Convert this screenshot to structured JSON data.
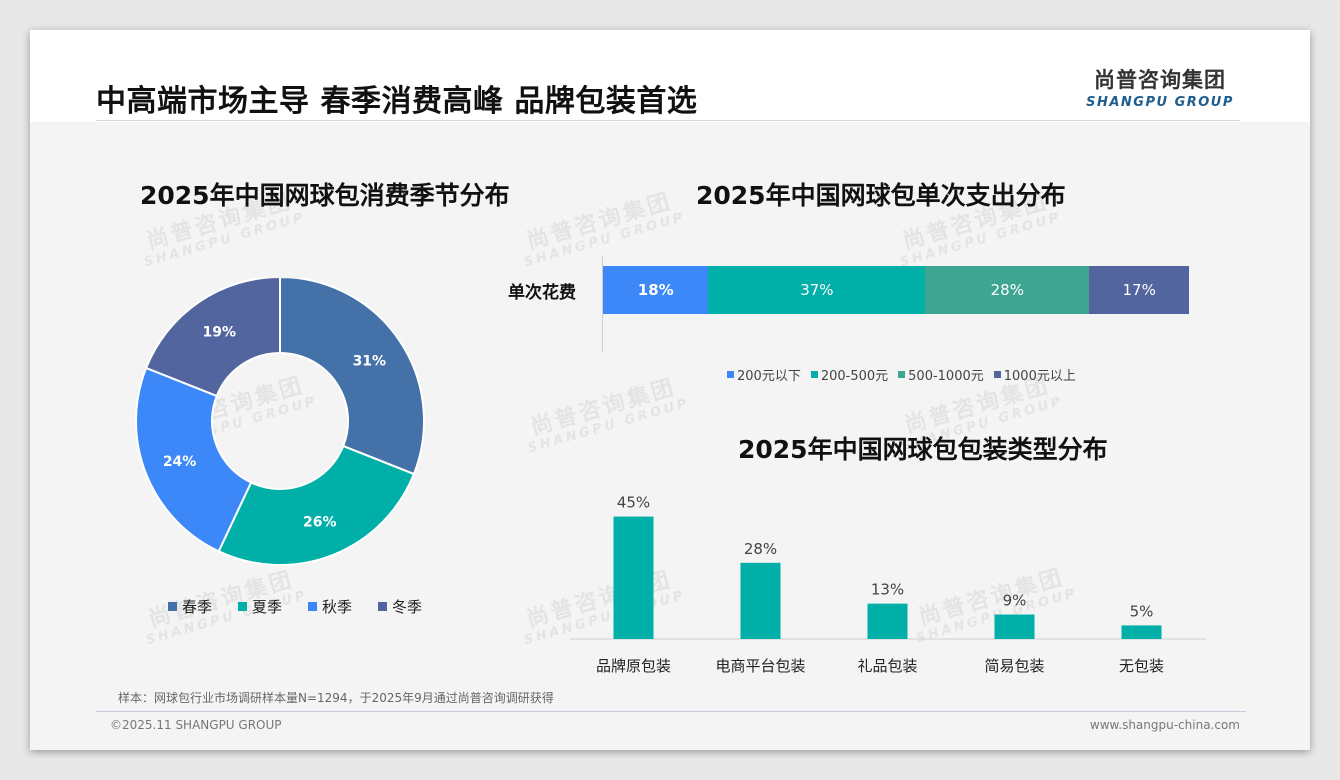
{
  "header": {
    "title": "中高端市场主导 春季消费高峰 品牌包装首选",
    "logo_cn": "尚普咨询集团",
    "logo_en": "SHANGPU GROUP"
  },
  "watermark": {
    "cn": "尚普咨询集团",
    "en": "SHANGPU GROUP"
  },
  "colors": {
    "steel_blue": "#4472a8",
    "teal": "#00b0a8",
    "bright_blue": "#3c88f8",
    "slate_blue": "#53659f",
    "sea_green": "#3ea592",
    "bar_blue": "#3c88f8"
  },
  "chart_data": [
    {
      "type": "pie",
      "title": "2025年中国网球包消费季节分布",
      "categories": [
        "春季",
        "夏季",
        "秋季",
        "冬季"
      ],
      "values": [
        31,
        26,
        24,
        19
      ],
      "labels": [
        "31%",
        "26%",
        "24%",
        "19%"
      ],
      "colors": [
        "#4472a8",
        "#00b0a8",
        "#3c88f8",
        "#53659f"
      ],
      "legend_position": "bottom"
    },
    {
      "type": "bar",
      "orientation": "horizontal-stacked",
      "title": "2025年中国网球包单次支出分布",
      "categories": [
        "单次花费"
      ],
      "series": [
        {
          "name": "200元以下",
          "values": [
            18
          ],
          "label": "18%",
          "color": "#3c88f8"
        },
        {
          "name": "200-500元",
          "values": [
            37
          ],
          "label": "37%",
          "color": "#00b0a8"
        },
        {
          "name": "500-1000元",
          "values": [
            28
          ],
          "label": "28%",
          "color": "#3ea592"
        },
        {
          "name": "1000元以上",
          "values": [
            17
          ],
          "label": "17%",
          "color": "#53659f"
        }
      ],
      "xlim": [
        0,
        100
      ],
      "legend_position": "bottom"
    },
    {
      "type": "bar",
      "title": "2025年中国网球包包装类型分布",
      "categories": [
        "品牌原包装",
        "电商平台包装",
        "礼品包装",
        "简易包装",
        "无包装"
      ],
      "values": [
        45,
        28,
        13,
        9,
        5
      ],
      "labels": [
        "45%",
        "28%",
        "13%",
        "9%",
        "5%"
      ],
      "color": "#00b0a8",
      "ylim": [
        0,
        50
      ]
    }
  ],
  "footer": {
    "sample_note": "样本：网球包行业市场调研样本量N=1294，于2025年9月通过尚普咨询调研获得",
    "copyright": "©2025.11 SHANGPU GROUP",
    "website": "www.shangpu-china.com"
  }
}
